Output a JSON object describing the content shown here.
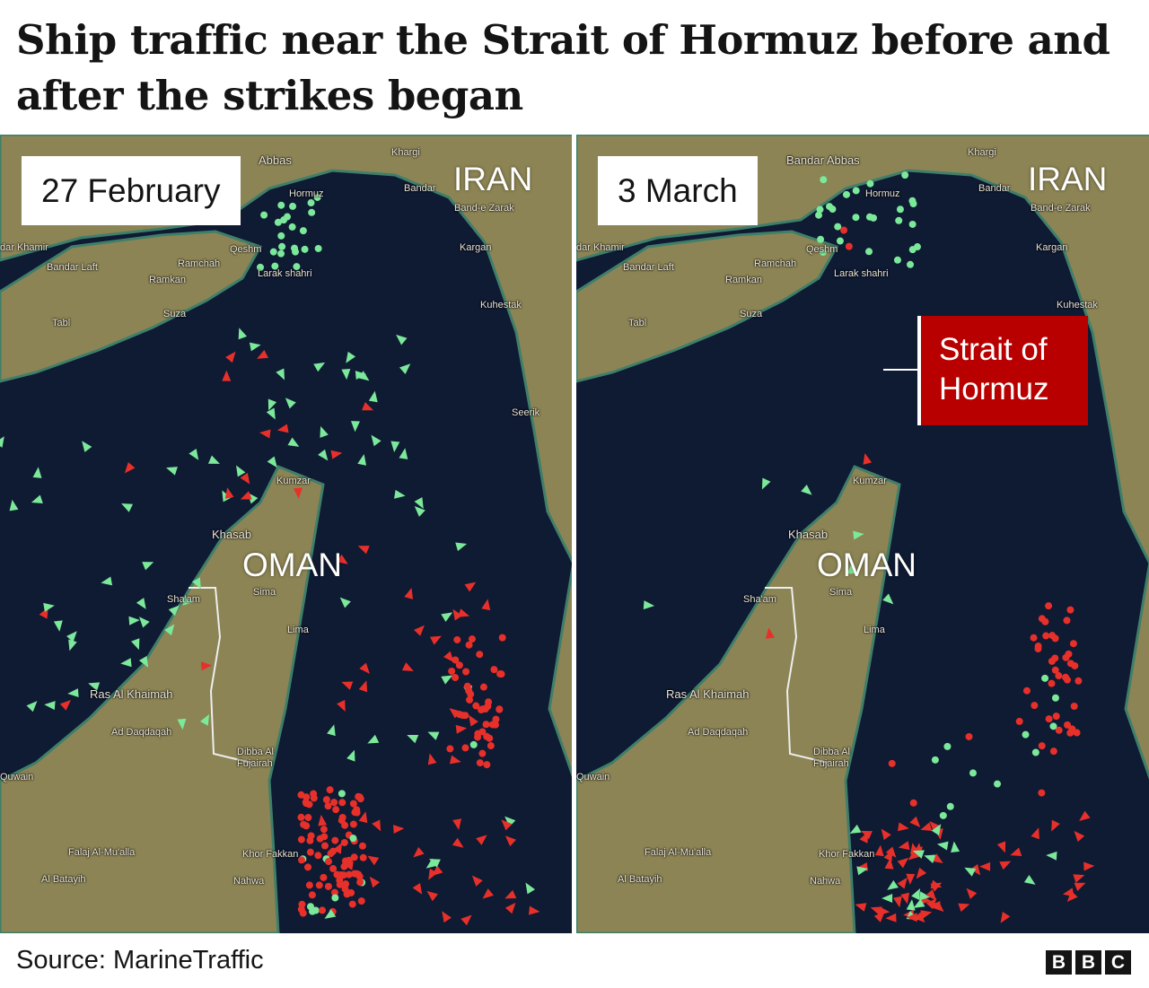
{
  "title": "Ship traffic near the Strait of Hormuz before and after the strikes began",
  "panels": [
    {
      "date": "27 February",
      "countries": {
        "iran": "IRAN",
        "oman": "OMAN"
      }
    },
    {
      "date": "3 March",
      "countries": {
        "iran": "IRAN",
        "oman": "OMAN"
      },
      "callout": "Strait of Hormuz"
    }
  ],
  "places": {
    "abbas_left": "Abbas",
    "bandar_abbas": "Bandar Abbas",
    "khargi": "Khargi",
    "hormuz": "Hormuz",
    "bandar": "Bandar",
    "band_e_zarak": "Band-e Zarak",
    "bandar_khamir": "dar Khamir",
    "qeshm": "Qeshm",
    "ramchah": "Ramchah",
    "ramkan": "Ramkan",
    "bandar_laft": "Bandar Laft",
    "larak": "Larak shahri",
    "kargan": "Kargan",
    "kuhestak": "Kuhestak",
    "suza": "Suza",
    "tabl": "Tabl",
    "seerik": "Seerik",
    "kumzar": "Kumzar",
    "khasab": "Khasab",
    "sima": "Sima",
    "shaam": "Sha'am",
    "lima": "Lima",
    "ras_al_khaimah": "Ras Al Khaimah",
    "ad_daqdaqah": "Ad Daqdaqah",
    "dibba": "Dibba Al Fujairah",
    "quwain": "Quwain",
    "falaj": "Falaj Al-Mu'alla",
    "al_batayih": "Al Batayih",
    "khor_fakkan": "Khor Fakkan",
    "nahwa": "Nahwa"
  },
  "legend_colors": {
    "water": "#0f1a33",
    "land": "#8c8454",
    "ship_red": "#e8302a",
    "ship_green": "#7be89a",
    "callout": "#b80000"
  },
  "footer": {
    "source": "Source: MarineTraffic",
    "logo": [
      "B",
      "B",
      "C"
    ]
  }
}
